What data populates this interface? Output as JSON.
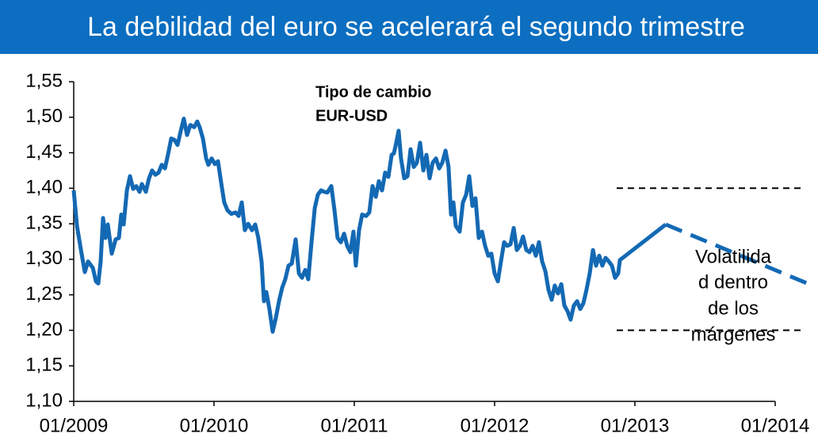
{
  "chart_data": {
    "type": "line",
    "title": "La debilidad del euro se acelerará el segundo trimestre",
    "series_label": [
      "Tipo de cambio",
      "EUR-USD"
    ],
    "annotation": [
      "Volatilida",
      "d dentro",
      "de los",
      "márgenes"
    ],
    "xlim": [
      2009,
      2014
    ],
    "xticks": [
      {
        "value": 2009,
        "label": "01/2009"
      },
      {
        "value": 2010,
        "label": "01/2010"
      },
      {
        "value": 2011,
        "label": "01/2011"
      },
      {
        "value": 2012,
        "label": "01/2012"
      },
      {
        "value": 2013,
        "label": "01/2013"
      },
      {
        "value": 2014,
        "label": "01/2014"
      }
    ],
    "ylim": [
      1.1,
      1.55
    ],
    "yticks": [
      {
        "value": 1.1,
        "label": "1,10"
      },
      {
        "value": 1.15,
        "label": "1,15"
      },
      {
        "value": 1.2,
        "label": "1,20"
      },
      {
        "value": 1.25,
        "label": "1,25"
      },
      {
        "value": 1.3,
        "label": "1,30"
      },
      {
        "value": 1.35,
        "label": "1,35"
      },
      {
        "value": 1.4,
        "label": "1,40"
      },
      {
        "value": 1.45,
        "label": "1,45"
      },
      {
        "value": 1.5,
        "label": "1,50"
      },
      {
        "value": 1.55,
        "label": "1,55"
      }
    ],
    "grid": false,
    "series": [
      {
        "color": "#1469b4",
        "line_style": "solid",
        "x": [
          2009.0,
          2009.023,
          2009.056,
          2009.079,
          2009.102,
          2009.136,
          2009.158,
          2009.175,
          2009.192,
          2009.209,
          2009.226,
          2009.243,
          2009.271,
          2009.299,
          2009.322,
          2009.339,
          2009.356,
          2009.379,
          2009.401,
          2009.424,
          2009.446,
          2009.469,
          2009.486,
          2009.514,
          2009.537,
          2009.559,
          2009.582,
          2009.605,
          2009.627,
          2009.65,
          2009.672,
          2009.695,
          2009.718,
          2009.74,
          2009.763,
          2009.785,
          2009.808,
          2009.831,
          2009.859,
          2009.881,
          2009.898,
          2009.921,
          2009.944,
          2009.96,
          2009.983,
          2010.006,
          2010.028,
          2010.051,
          2010.073,
          2010.096,
          2010.124,
          2010.153,
          2010.175,
          2010.198,
          2010.22,
          2010.243,
          2010.271,
          2010.294,
          2010.316,
          2010.339,
          2010.356,
          2010.373,
          2010.395,
          2010.418,
          2010.441,
          2010.463,
          2010.486,
          2010.508,
          2010.531,
          2010.554,
          2010.582,
          2010.605,
          2010.627,
          2010.65,
          2010.672,
          2010.695,
          2010.718,
          2010.74,
          2010.763,
          2010.785,
          2010.808,
          2010.836,
          2010.859,
          2010.881,
          2010.904,
          2010.927,
          2010.949,
          2010.972,
          2010.994,
          2011.011,
          2011.034,
          2011.056,
          2011.085,
          2011.107,
          2011.13,
          2011.153,
          2011.175,
          2011.198,
          2011.22,
          2011.243,
          2011.266,
          2011.282,
          2011.299,
          2011.316,
          2011.333,
          2011.356,
          2011.379,
          2011.401,
          2011.424,
          2011.446,
          2011.469,
          2011.492,
          2011.514,
          2011.537,
          2011.559,
          2011.582,
          2011.605,
          2011.627,
          2011.65,
          2011.672,
          2011.689,
          2011.706,
          2011.723,
          2011.751,
          2011.774,
          2011.797,
          2011.819,
          2011.842,
          2011.864,
          2011.887,
          2011.91,
          2011.932,
          2011.955,
          2011.977,
          2012.0,
          2012.023,
          2012.045,
          2012.068,
          2012.09,
          2012.113,
          2012.136,
          2012.158,
          2012.181,
          2012.203,
          2012.226,
          2012.249,
          2012.271,
          2012.294,
          2012.316,
          2012.339,
          2012.362,
          2012.384,
          2012.407,
          2012.429,
          2012.452,
          2012.475,
          2012.497,
          2012.52,
          2012.542,
          2012.565,
          2012.588,
          2012.61,
          2012.633,
          2012.655,
          2012.678,
          2012.701,
          2012.723,
          2012.746,
          2012.768,
          2012.791,
          2012.814,
          2012.836,
          2012.859,
          2012.881,
          2012.893,
          2013.22
        ],
        "values": [
          1.397,
          1.347,
          1.308,
          1.282,
          1.297,
          1.288,
          1.269,
          1.266,
          1.297,
          1.358,
          1.33,
          1.349,
          1.308,
          1.328,
          1.33,
          1.363,
          1.349,
          1.397,
          1.417,
          1.399,
          1.403,
          1.395,
          1.406,
          1.395,
          1.414,
          1.425,
          1.419,
          1.422,
          1.433,
          1.428,
          1.447,
          1.47,
          1.468,
          1.461,
          1.481,
          1.498,
          1.475,
          1.489,
          1.486,
          1.494,
          1.486,
          1.47,
          1.442,
          1.433,
          1.442,
          1.434,
          1.438,
          1.408,
          1.38,
          1.369,
          1.364,
          1.366,
          1.361,
          1.38,
          1.341,
          1.35,
          1.341,
          1.349,
          1.33,
          1.297,
          1.241,
          1.254,
          1.23,
          1.198,
          1.218,
          1.241,
          1.26,
          1.272,
          1.291,
          1.294,
          1.328,
          1.28,
          1.274,
          1.285,
          1.272,
          1.324,
          1.372,
          1.391,
          1.397,
          1.395,
          1.394,
          1.403,
          1.369,
          1.33,
          1.324,
          1.336,
          1.319,
          1.31,
          1.339,
          1.291,
          1.341,
          1.363,
          1.361,
          1.366,
          1.403,
          1.388,
          1.41,
          1.397,
          1.422,
          1.416,
          1.447,
          1.449,
          1.464,
          1.481,
          1.442,
          1.414,
          1.417,
          1.455,
          1.43,
          1.436,
          1.464,
          1.425,
          1.447,
          1.414,
          1.436,
          1.442,
          1.428,
          1.436,
          1.453,
          1.43,
          1.363,
          1.38,
          1.347,
          1.339,
          1.38,
          1.391,
          1.417,
          1.375,
          1.386,
          1.33,
          1.339,
          1.319,
          1.305,
          1.308,
          1.28,
          1.269,
          1.297,
          1.324,
          1.319,
          1.321,
          1.344,
          1.313,
          1.319,
          1.332,
          1.313,
          1.31,
          1.319,
          1.305,
          1.324,
          1.297,
          1.283,
          1.257,
          1.243,
          1.263,
          1.252,
          1.265,
          1.235,
          1.227,
          1.215,
          1.235,
          1.241,
          1.23,
          1.238,
          1.257,
          1.28,
          1.313,
          1.291,
          1.305,
          1.291,
          1.302,
          1.297,
          1.291,
          1.274,
          1.28,
          1.299,
          1.349
        ]
      },
      {
        "color": "#1469b4",
        "line_style": "dashed",
        "x": [
          2013.22,
          2014.266
        ],
        "values": [
          1.349,
          1.263
        ]
      }
    ],
    "reference_lines": [
      {
        "color": "#000000",
        "x": [
          2012.87,
          2014.209
        ],
        "values": [
          1.4,
          1.4
        ]
      },
      {
        "color": "#000000",
        "x": [
          2012.87,
          2014.209
        ],
        "values": [
          1.2,
          1.2
        ]
      }
    ]
  }
}
